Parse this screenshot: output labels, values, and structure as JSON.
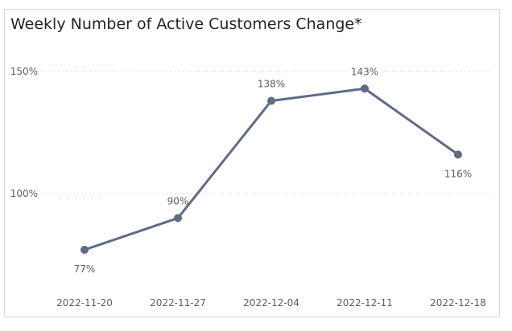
{
  "chart_data": {
    "type": "line",
    "title": "Weekly Number of Active Customers Change*",
    "categories": [
      "2022-11-20",
      "2022-11-27",
      "2022-12-04",
      "2022-12-11",
      "2022-12-18"
    ],
    "values": [
      77,
      90,
      138,
      143,
      116
    ],
    "value_labels": [
      "77%",
      "90%",
      "138%",
      "143%",
      "116%"
    ],
    "y_ticks": [
      {
        "value": 100,
        "label": "100%"
      },
      {
        "value": 150,
        "label": "150%"
      }
    ],
    "ylim": [
      66,
      157
    ],
    "grid": "dotted horizontal",
    "line_color": "#5e6b85",
    "xlabel": "",
    "ylabel": ""
  }
}
